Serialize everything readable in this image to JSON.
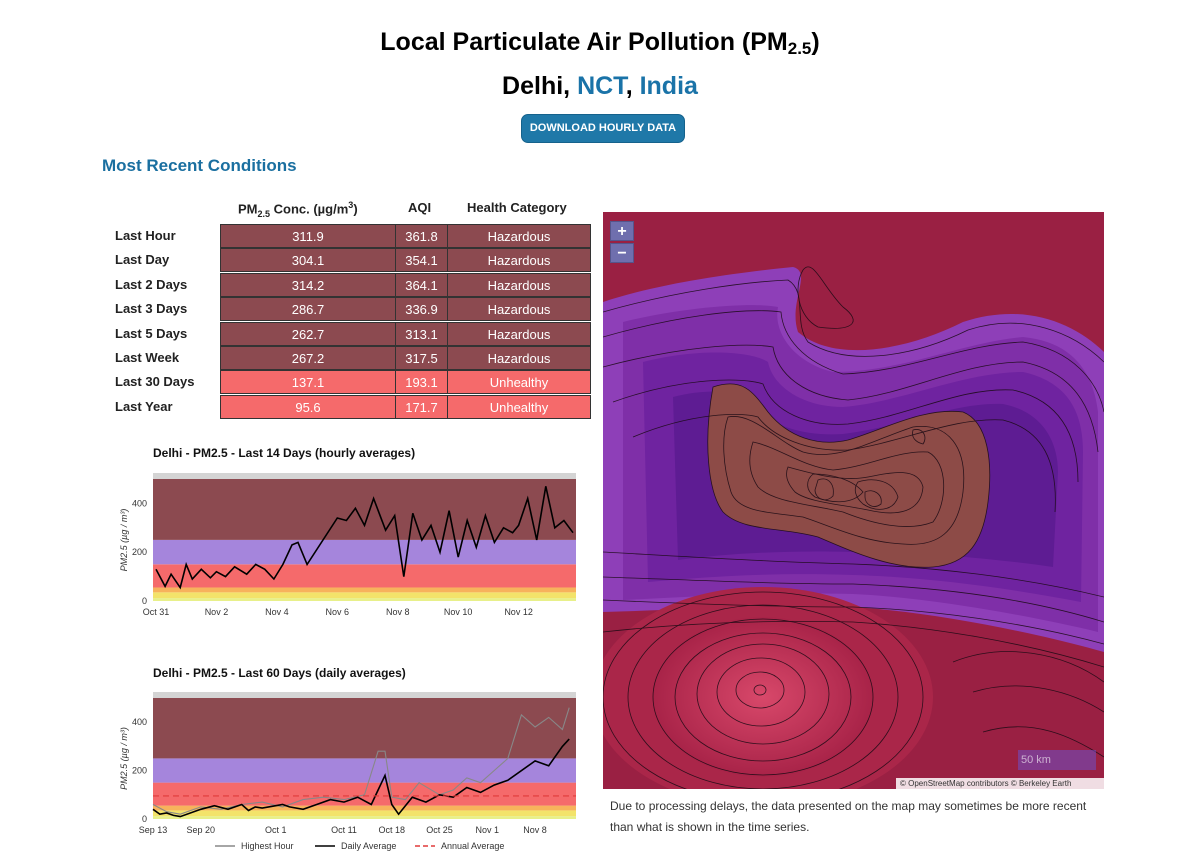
{
  "header": {
    "title": "Local Particulate Air Pollution (PM",
    "title_sub": "2.5",
    "title_end": ")",
    "city": "Delhi",
    "comma1": ", ",
    "region": "NCT",
    "comma2": ", ",
    "country": "India",
    "download_label": "DOWNLOAD HOURLY DATA"
  },
  "conditions": {
    "section_title": "Most Recent Conditions",
    "columns": {
      "conc": "PM",
      "conc_sub": "2.5",
      "conc_unit": " Conc. (µg/m",
      "conc_sup": "3",
      "conc_end": ")",
      "aqi": "AQI",
      "health": "Health Category"
    },
    "rows": [
      {
        "label": "Last Hour",
        "conc": "311.9",
        "aqi": "361.8",
        "health": "Hazardous",
        "level": "haz"
      },
      {
        "label": "Last Day",
        "conc": "304.1",
        "aqi": "354.1",
        "health": "Hazardous",
        "level": "haz"
      },
      {
        "label": "Last 2 Days",
        "conc": "314.2",
        "aqi": "364.1",
        "health": "Hazardous",
        "level": "haz"
      },
      {
        "label": "Last 3 Days",
        "conc": "286.7",
        "aqi": "336.9",
        "health": "Hazardous",
        "level": "haz"
      },
      {
        "label": "Last 5 Days",
        "conc": "262.7",
        "aqi": "313.1",
        "health": "Hazardous",
        "level": "haz"
      },
      {
        "label": "Last Week",
        "conc": "267.2",
        "aqi": "317.5",
        "health": "Hazardous",
        "level": "haz"
      },
      {
        "label": "Last 30 Days",
        "conc": "137.1",
        "aqi": "193.1",
        "health": "Unhealthy",
        "level": "unh"
      },
      {
        "label": "Last Year",
        "conc": "95.6",
        "aqi": "171.7",
        "health": "Unhealthy",
        "level": "unh"
      }
    ]
  },
  "chart_data": [
    {
      "type": "line",
      "title": "Delhi - PM2.5 - Last 14 Days (hourly averages)",
      "ylabel": "PM2.5 (µg / m³)",
      "ylim": [
        0,
        500
      ],
      "yticks": [
        "0",
        "200",
        "400"
      ],
      "xticks": [
        "Oct 31",
        "Nov 2",
        "Nov 4",
        "Nov 6",
        "Nov 8",
        "Nov 10",
        "Nov 12"
      ],
      "x_days": [
        0,
        2,
        4,
        6,
        8,
        10,
        12
      ],
      "xlim_days": [
        -0.1,
        13.9
      ],
      "bands": [
        {
          "from": 0,
          "to": 12,
          "color": "#e8f08a"
        },
        {
          "from": 12,
          "to": 35.4,
          "color": "#f3e36a"
        },
        {
          "from": 35.4,
          "to": 55.4,
          "color": "#f7b25c"
        },
        {
          "from": 55.4,
          "to": 150.4,
          "color": "#f56a6b"
        },
        {
          "from": 150.4,
          "to": 250.4,
          "color": "#a585dc"
        },
        {
          "from": 250.4,
          "to": 500,
          "color": "#8c4a50"
        }
      ],
      "series": [
        {
          "color": "#000000",
          "x": [
            0,
            0.3,
            0.5,
            0.8,
            1.0,
            1.2,
            1.5,
            1.8,
            2.0,
            2.3,
            2.6,
            3.0,
            3.3,
            3.6,
            3.9,
            4.2,
            4.5,
            4.7,
            5.0,
            6.0,
            6.3,
            6.6,
            6.9,
            7.2,
            7.6,
            7.9,
            8.2,
            8.5,
            8.8,
            9.1,
            9.4,
            9.7,
            10.0,
            10.3,
            10.6,
            10.9,
            11.2,
            11.5,
            11.8,
            12.0,
            12.3,
            12.6,
            12.9,
            13.2,
            13.5,
            13.8
          ],
          "y": [
            130,
            60,
            110,
            55,
            150,
            90,
            130,
            95,
            120,
            100,
            140,
            110,
            150,
            130,
            90,
            150,
            230,
            240,
            150,
            340,
            330,
            380,
            310,
            420,
            290,
            350,
            100,
            360,
            250,
            310,
            200,
            370,
            180,
            330,
            220,
            350,
            240,
            300,
            280,
            310,
            420,
            250,
            470,
            300,
            330,
            280
          ]
        }
      ]
    },
    {
      "type": "line",
      "title": "Delhi - PM2.5 - Last 60 Days (daily averages)",
      "ylabel": "PM2.5 (µg / m³)",
      "ylim": [
        0,
        500
      ],
      "yticks": [
        "0",
        "200",
        "400"
      ],
      "xticks": [
        "Sep 13",
        "Sep 20",
        "Oct 1",
        "Oct 11",
        "Oct 18",
        "Oct 25",
        "Nov 1",
        "Nov 8"
      ],
      "x_days": [
        0,
        7,
        18,
        28,
        35,
        42,
        49,
        56
      ],
      "xlim_days": [
        0,
        62
      ],
      "bands": [
        {
          "from": 0,
          "to": 12,
          "color": "#e8f08a"
        },
        {
          "from": 12,
          "to": 35.4,
          "color": "#f3e36a"
        },
        {
          "from": 35.4,
          "to": 55.4,
          "color": "#f7b25c"
        },
        {
          "from": 55.4,
          "to": 150.4,
          "color": "#f56a6b"
        },
        {
          "from": 150.4,
          "to": 250.4,
          "color": "#a585dc"
        },
        {
          "from": 250.4,
          "to": 500,
          "color": "#8c4a50"
        }
      ],
      "annual_average": 95.6,
      "series": [
        {
          "name": "Highest Hour",
          "color": "#888888",
          "x": [
            0,
            2,
            4,
            7,
            10,
            13,
            16,
            19,
            22,
            25,
            28,
            31,
            33,
            34,
            35,
            37,
            39,
            42,
            44,
            46,
            48,
            50,
            52,
            54,
            56,
            58,
            60,
            61
          ],
          "y": [
            60,
            30,
            20,
            50,
            40,
            60,
            70,
            50,
            80,
            90,
            80,
            100,
            280,
            280,
            90,
            80,
            150,
            100,
            120,
            170,
            150,
            200,
            250,
            430,
            380,
            420,
            370,
            460
          ]
        },
        {
          "name": "Daily Average",
          "color": "#000000",
          "x": [
            0,
            1,
            2,
            3,
            4,
            7,
            9,
            11,
            13,
            14,
            15,
            16,
            18,
            19,
            20,
            22,
            24,
            26,
            28,
            30,
            32,
            33,
            34,
            35,
            36,
            38,
            40,
            42,
            44,
            46,
            48,
            50,
            52,
            56,
            58,
            60,
            61
          ],
          "y": [
            40,
            20,
            25,
            15,
            10,
            40,
            55,
            40,
            60,
            35,
            50,
            45,
            55,
            60,
            50,
            40,
            60,
            80,
            70,
            90,
            60,
            120,
            180,
            60,
            20,
            90,
            70,
            100,
            90,
            130,
            110,
            140,
            160,
            240,
            220,
            300,
            330
          ]
        },
        {
          "name": "Annual Average",
          "color": "#e03a3a",
          "dashed": true,
          "x": [
            0,
            62
          ],
          "y": [
            95.6,
            95.6
          ]
        }
      ],
      "legend": [
        "Highest Hour",
        "Daily Average",
        "Annual Average"
      ]
    }
  ],
  "map": {
    "zoom_in": "+",
    "zoom_out": "−",
    "scale_label": "50 km",
    "attribution": "© OpenStreetMap contributors © Berkeley Earth",
    "note": "Due to processing delays, the data presented on the map may sometimes be more recent than what is shown in the time series."
  }
}
